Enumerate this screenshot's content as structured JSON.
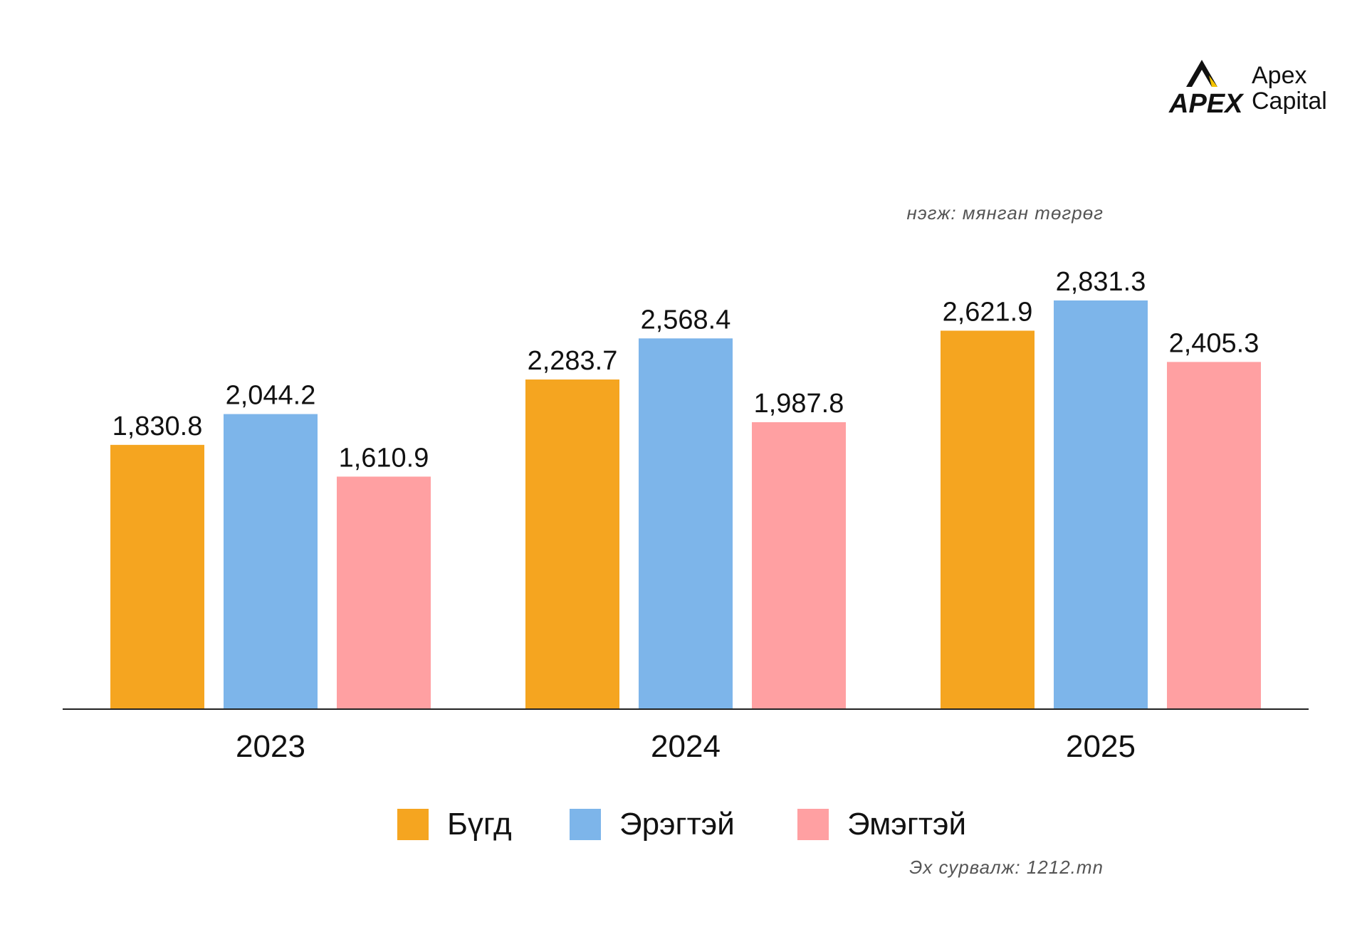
{
  "brand": {
    "logo_mark": "APEX",
    "name_line1": "Apex",
    "name_line2": "Capital",
    "accent": "#F5C400"
  },
  "unit_note": "нэгж: мянган төгрөг",
  "source_note": "Эх сурвалж: 1212.mn",
  "chart_data": {
    "type": "bar",
    "title": "",
    "xlabel": "",
    "ylabel": "",
    "categories": [
      "2023",
      "2024",
      "2025"
    ],
    "ylim": [
      0,
      3000
    ],
    "grid": false,
    "legend_position": "bottom",
    "series": [
      {
        "name": "Бүгд",
        "color": "#F5A520",
        "values": [
          1830.8,
          2283.7,
          2621.9
        ],
        "labels": [
          "1,830.8",
          "2,283.7",
          "2,621.9"
        ]
      },
      {
        "name": "Эрэгтэй",
        "color": "#7DB5EA",
        "values": [
          2044.2,
          2568.4,
          2831.3
        ],
        "labels": [
          "2,044.2",
          "2,568.4",
          "2,831.3"
        ]
      },
      {
        "name": "Эмэгтэй",
        "color": "#FFA0A2",
        "values": [
          1610.9,
          1987.8,
          2405.3
        ],
        "labels": [
          "1,610.9",
          "1,987.8",
          "2,405.3"
        ]
      }
    ]
  }
}
